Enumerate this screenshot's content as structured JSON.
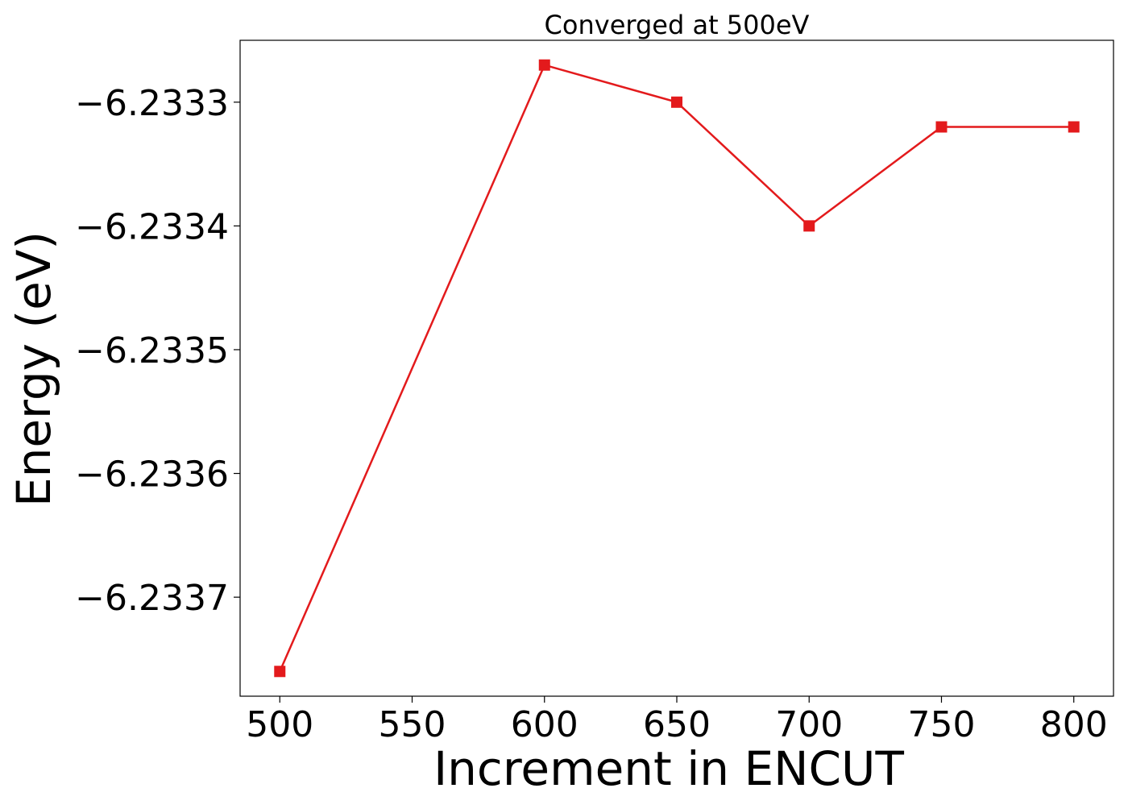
{
  "chart_data": {
    "type": "line",
    "title": "Converged at 500eV",
    "xlabel": "Increment in ENCUT",
    "ylabel": "Energy (eV)",
    "x": [
      500,
      600,
      650,
      700,
      750,
      800
    ],
    "series": [
      {
        "values": [
          -6.23376,
          -6.23327,
          -6.2333,
          -6.2334,
          -6.23332,
          -6.23332
        ],
        "color": "#e31a1c",
        "marker": "square"
      }
    ],
    "xlim": [
      485,
      815
    ],
    "ylim": [
      -6.23378,
      -6.23325
    ],
    "xticks": [
      500,
      550,
      600,
      650,
      700,
      750,
      800
    ],
    "xtick_labels": [
      "500",
      "550",
      "600",
      "650",
      "700",
      "750",
      "800"
    ],
    "yticks": [
      -6.2333,
      -6.2334,
      -6.2335,
      -6.2336,
      -6.2337
    ],
    "ytick_labels": [
      "−6.2333",
      "−6.2334",
      "−6.2335",
      "−6.2336",
      "−6.2337"
    ],
    "grid": false,
    "legend": "none"
  }
}
